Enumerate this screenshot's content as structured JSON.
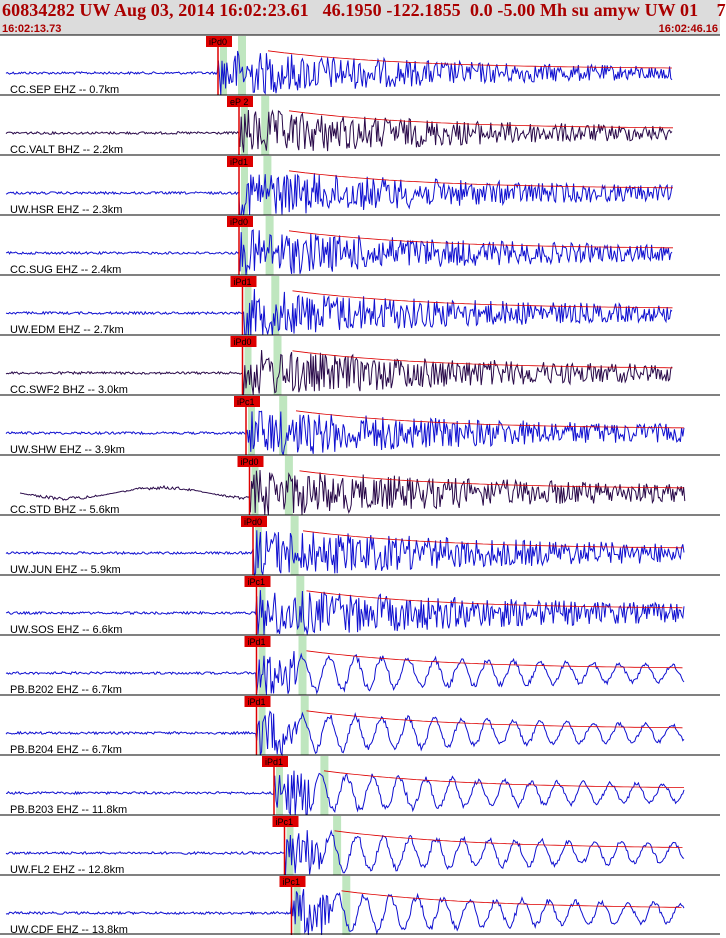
{
  "header": {
    "title": "60834282 UW Aug 03, 2014 16:02:23.61   46.1950 -122.1855  0.0 -5.00 Mh su amyw UW 01    7",
    "time_start": "16:02:13.73",
    "time_end": "16:02:46.16"
  },
  "colors": {
    "trace_blue": "#1010d0",
    "trace_dark": "#2a0a4a",
    "pick_red": "#dd0000",
    "window_green": "#bfe6bf",
    "header_bg": "#dcdcdc",
    "title_red": "#aa0000"
  },
  "chart_data": {
    "type": "line",
    "x_range": [
      "16:02:13.73",
      "16:02:46.16"
    ],
    "rows": [
      {
        "label": "CC.SEP EHZ -- 0.7km",
        "pick": "iPd0",
        "color": "blue",
        "arrival": 0.3
      },
      {
        "label": "CC.VALT BHZ -- 2.2km",
        "pick": "eP 2",
        "color": "dark",
        "arrival": 0.33
      },
      {
        "label": "UW.HSR EHZ -- 2.3km",
        "pick": "iPd1",
        "color": "blue",
        "arrival": 0.33
      },
      {
        "label": "CC.SUG EHZ -- 2.4km",
        "pick": "iPd0",
        "color": "blue",
        "arrival": 0.33
      },
      {
        "label": "UW.EDM EHZ -- 2.7km",
        "pick": "iPd1",
        "color": "blue",
        "arrival": 0.335
      },
      {
        "label": "CC.SWF2 BHZ -- 3.0km",
        "pick": "iPd0",
        "color": "dark",
        "arrival": 0.335
      },
      {
        "label": "UW.SHW EHZ -- 3.9km",
        "pick": "iPc1",
        "color": "blue",
        "arrival": 0.34
      },
      {
        "label": "CC.STD BHZ -- 5.6km",
        "pick": "iPd0",
        "color": "dark",
        "arrival": 0.345
      },
      {
        "label": "UW.JUN EHZ -- 5.9km",
        "pick": "iPd0",
        "color": "blue",
        "arrival": 0.35
      },
      {
        "label": "UW.SOS EHZ -- 6.6km",
        "pick": "iPc1",
        "color": "blue",
        "arrival": 0.355
      },
      {
        "label": "PB.B202 EHZ -- 6.7km",
        "pick": "iPd1",
        "color": "blue",
        "arrival": 0.355
      },
      {
        "label": "PB.B204 EHZ -- 6.7km",
        "pick": "iPd1",
        "color": "blue",
        "arrival": 0.355
      },
      {
        "label": "PB.B203 EHZ -- 11.8km",
        "pick": "iPd1",
        "color": "blue",
        "arrival": 0.38
      },
      {
        "label": "UW.FL2 EHZ -- 12.8km",
        "pick": "iPc1",
        "color": "blue",
        "arrival": 0.395
      },
      {
        "label": "UW.CDF EHZ -- 13.8km",
        "pick": "iPc1",
        "color": "blue",
        "arrival": 0.405
      }
    ]
  }
}
